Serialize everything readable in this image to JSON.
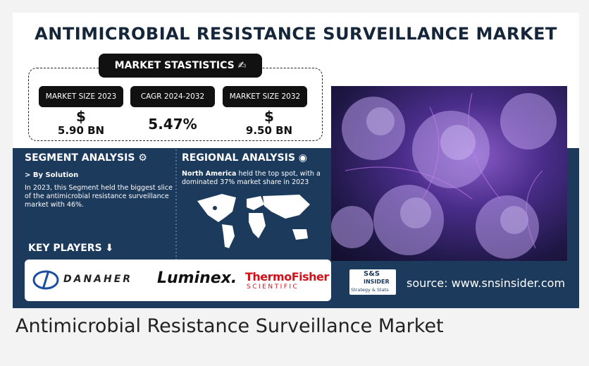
{
  "infographic": {
    "title": "ANTIMICROBIAL RESISTANCE SURVEILLANCE MARKET",
    "stats_heading": "MARKET STASTISTICS",
    "stats": [
      {
        "label": "MARKET SIZE 2023",
        "symbol": "$",
        "value": "5.90 BN"
      },
      {
        "label": "CAGR 2024-2032",
        "value": "5.47%"
      },
      {
        "label": "MARKET SIZE 2032",
        "symbol": "$",
        "value": "9.50 BN"
      }
    ],
    "segment": {
      "heading": "SEGMENT ANALYSIS",
      "subheading": "> By Solution",
      "text": "In 2023, this Segment held the biggest slice of the antimicrobial resistance surveillance market with 46%."
    },
    "regional": {
      "heading": "REGIONAL ANALYSIS",
      "region": "North America",
      "text": " held the top spot, with a dominated 37% market share in 2023"
    },
    "key_players": {
      "heading": "KEY PLAYERS",
      "players": [
        "DANAHER",
        "Luminex.",
        "ThermoFisher",
        "SCIENTIFIC"
      ]
    },
    "logo": {
      "line1": "S&S",
      "line2": "INSIDER",
      "line3": "Strategy & Stats"
    },
    "source": "source: www.snsinsider.com"
  },
  "caption": "Antimicrobial Resistance Surveillance Market"
}
